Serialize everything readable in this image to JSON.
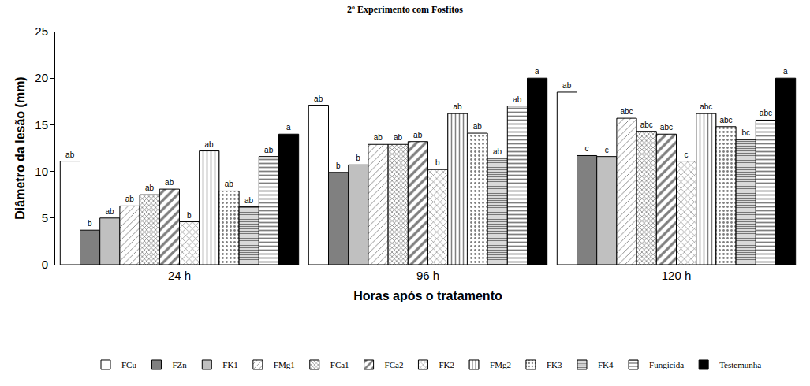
{
  "chart_data": {
    "type": "bar",
    "title": "2º Experimento com Fosfitos",
    "x_label": "Horas após o tratamento",
    "y_label": "Diâmetro da lesão (mm)",
    "categories": [
      "24 h",
      "96 h",
      "120 h"
    ],
    "ylim": [
      0,
      25
    ],
    "yticks": [
      0,
      5,
      10,
      15,
      20,
      25
    ],
    "grid": false,
    "legend": "bottom",
    "series": [
      {
        "name": "FCu",
        "color": "#ffffff",
        "marker": "solid",
        "values": [
          11.1,
          17.1,
          18.5
        ],
        "annotations": [
          "ab",
          "ab",
          "ab"
        ]
      },
      {
        "name": "FZn",
        "color": "#808080",
        "marker": "solid",
        "values": [
          3.7,
          9.9,
          11.7
        ],
        "annotations": [
          "b",
          "b",
          "c"
        ]
      },
      {
        "name": "FK1",
        "color": "#c0c0c0",
        "marker": "solid",
        "values": [
          5.0,
          10.7,
          11.6
        ],
        "annotations": [
          "ab",
          "b",
          "c"
        ]
      },
      {
        "name": "FMg1",
        "color": "#ffffff",
        "marker": "diagonal",
        "values": [
          6.3,
          12.9,
          15.7
        ],
        "annotations": [
          "ab",
          "ab",
          "abc"
        ]
      },
      {
        "name": "FCa1",
        "color": "#ffffff",
        "marker": "checker",
        "values": [
          7.5,
          12.9,
          14.3
        ],
        "annotations": [
          "ab",
          "ab",
          "abc"
        ]
      },
      {
        "name": "FCa2",
        "color": "#ffffff",
        "marker": "thickdiagonal",
        "values": [
          8.1,
          13.2,
          14.0
        ],
        "annotations": [
          "ab",
          "ab",
          "abc"
        ]
      },
      {
        "name": "FK2",
        "color": "#ffffff",
        "marker": "crosshatch",
        "values": [
          4.6,
          10.2,
          11.1
        ],
        "annotations": [
          "b",
          "b",
          "c"
        ]
      },
      {
        "name": "FMg2",
        "color": "#ffffff",
        "marker": "vertical",
        "values": [
          12.2,
          16.2,
          16.2
        ],
        "annotations": [
          "ab",
          "ab",
          "abc"
        ]
      },
      {
        "name": "FK3",
        "color": "#ffffff",
        "marker": "dots",
        "values": [
          7.9,
          14.1,
          14.8
        ],
        "annotations": [
          "ab",
          "ab",
          "abc"
        ]
      },
      {
        "name": "FK4",
        "color": "#d9d9d9",
        "marker": "finehorizontal",
        "values": [
          6.2,
          11.4,
          13.4
        ],
        "annotations": [
          "ab",
          "ab",
          "bc"
        ]
      },
      {
        "name": "Fungicida",
        "color": "#ffffff",
        "marker": "horizontal",
        "values": [
          11.6,
          17.0,
          15.5
        ],
        "annotations": [
          "ab",
          "ab",
          "abc"
        ]
      },
      {
        "name": "Testemunha",
        "color": "#000000",
        "marker": "solid",
        "values": [
          14.0,
          20.0,
          20.0
        ],
        "annotations": [
          "a",
          "a",
          "a"
        ]
      }
    ]
  }
}
